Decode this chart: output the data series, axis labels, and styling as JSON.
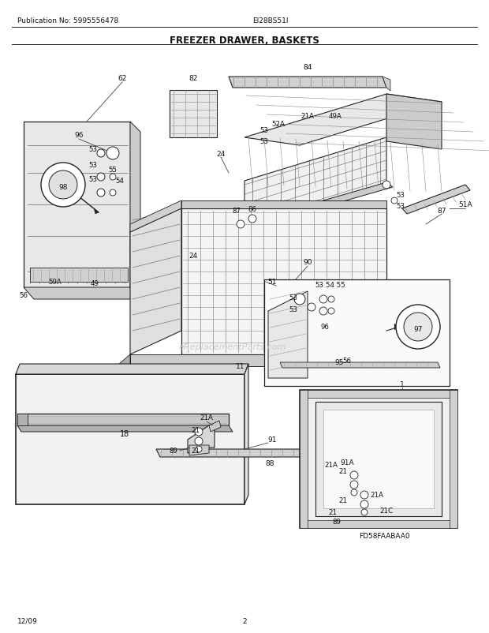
{
  "title": "FREEZER DRAWER, BASKETS",
  "pub_no": "Publication No: 5995556478",
  "model": "EI28BS51I",
  "date": "12/09",
  "page": "2",
  "diagram_code": "FD58FAABAA0",
  "watermark": "eReplacementParts.com",
  "bg_color": "#ffffff",
  "line_color": "#222222",
  "text_color": "#111111",
  "gray1": "#bbbbbb",
  "gray2": "#888888",
  "gray3": "#555555",
  "gray_light": "#e8e8e8",
  "gray_mid": "#cccccc",
  "gray_dark": "#999999"
}
